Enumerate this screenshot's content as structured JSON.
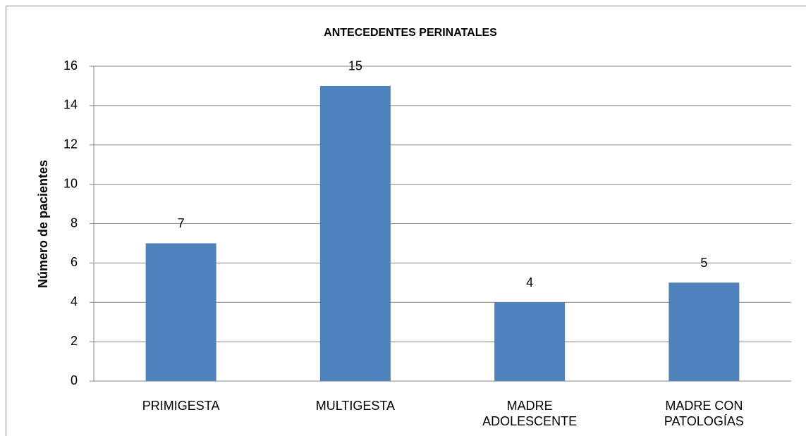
{
  "chart_data": {
    "type": "bar",
    "title": "ANTECEDENTES PERINATALES",
    "y_label": "Número de pacientes",
    "categories": [
      "PRIMIGESTA",
      "MULTIGESTA",
      "MADRE ADOLESCENTE",
      "MADRE CON PATOLOGÍAS"
    ],
    "values": [
      7,
      15,
      4,
      5
    ],
    "color": "#4f81bd",
    "ylim": [
      0,
      16
    ],
    "yticks": [
      0,
      2,
      4,
      6,
      8,
      10,
      12,
      14,
      16
    ],
    "grid": true
  }
}
